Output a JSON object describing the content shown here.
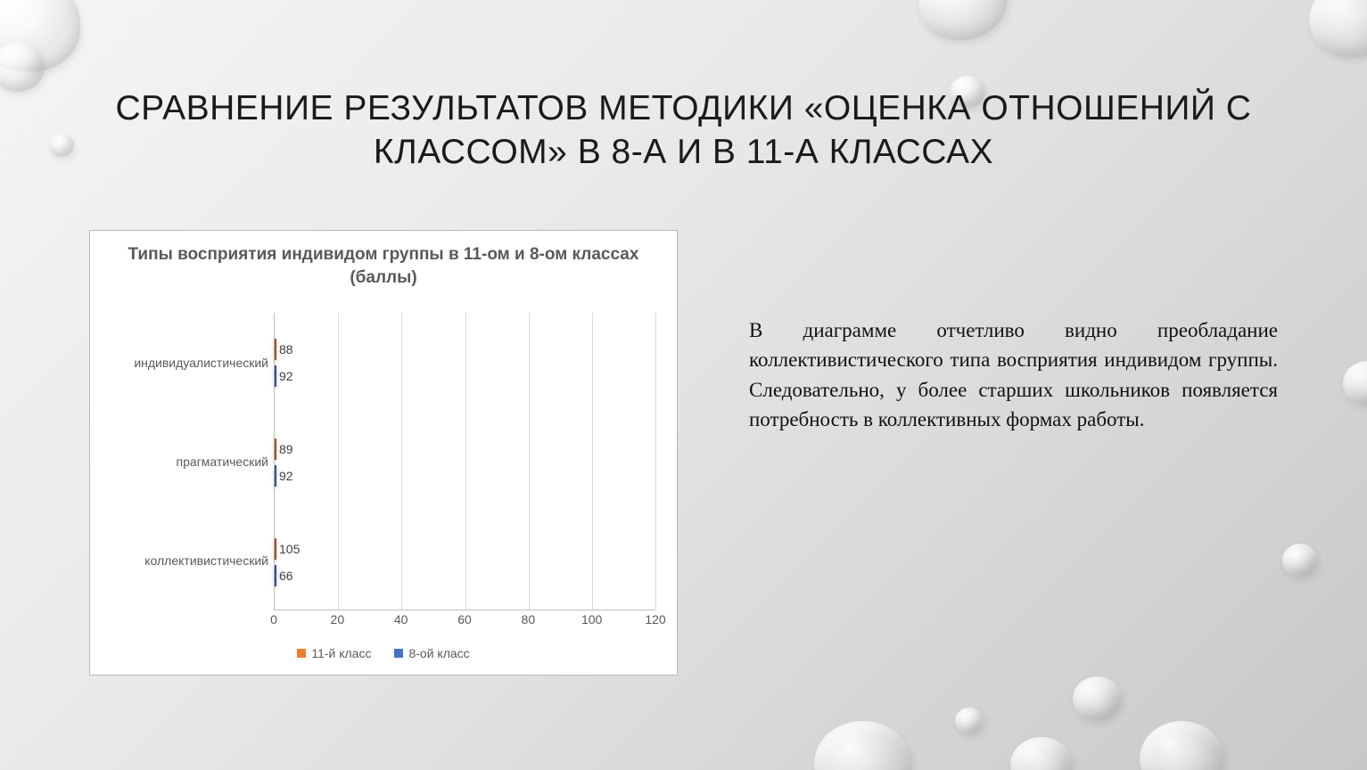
{
  "slide": {
    "title": "СРАВНЕНИЕ РЕЗУЛЬТАТОВ МЕТОДИКИ «ОЦЕНКА ОТНОШЕНИЙ С КЛАССОМ» В 8-А И В 11-А КЛАССАХ",
    "title_fontsize": 39,
    "title_weight": "400",
    "body_text": "В диаграмме отчетливо видно преобладание коллективистического типа восприятия индивидом группы. Следовательно, у более старших школьников появляется потребность в коллективных формах работы.",
    "body_fontsize": 23
  },
  "chart": {
    "type": "bar-horizontal-grouped",
    "title": "Типы восприятия индивидом группы в 11-ом и 8-ом классах (баллы)",
    "title_fontsize": 19,
    "categories": [
      "коллективистический",
      "прагматический",
      "индивидуалистический"
    ],
    "category_fontsize": 14,
    "series": [
      {
        "name": "11-й класс",
        "color": "#ed7d31",
        "border": "#a85115",
        "values": [
          105,
          89,
          88
        ]
      },
      {
        "name": "8-ой класс",
        "color": "#4472c4",
        "border": "#2f528f",
        "values": [
          66,
          92,
          92
        ]
      }
    ],
    "xaxis": {
      "min": 0,
      "max": 120,
      "step": 20,
      "tick_fontsize": 14
    },
    "datalabel_fontsize": 14,
    "legend_fontsize": 14,
    "background": "#ffffff",
    "grid_color": "#d9d9d9",
    "axis_color": "#bfbfbf"
  }
}
